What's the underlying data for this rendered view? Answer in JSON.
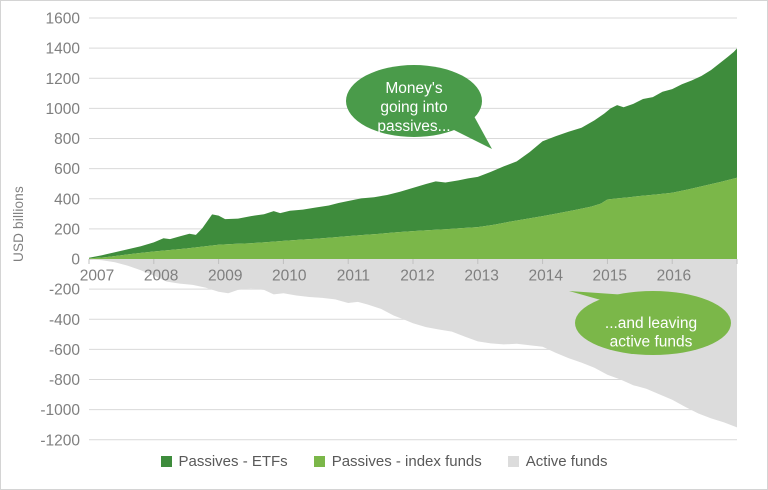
{
  "chart_data": {
    "type": "area",
    "stacked": true,
    "title": "",
    "xlabel": "",
    "ylabel": "USD billions",
    "x_unit": "year",
    "xlim": [
      2007,
      2017
    ],
    "ylim": [
      -1200,
      1600
    ],
    "ytick_step": 200,
    "xticks": [
      2007,
      2008,
      2009,
      2010,
      2011,
      2012,
      2013,
      2014,
      2015,
      2016
    ],
    "grid": "horizontal",
    "legend_position": "bottom",
    "colors": {
      "etf_green": "#3e8c3c",
      "index_green": "#7bb749",
      "active_gray": "#dcdcdc",
      "bubble_dark_green": "#4a9b4a",
      "bubble_light_green": "#7bb749",
      "gridline": "#d9d9d9",
      "axis": "#bfbfbf",
      "axis_text": "#7f7f7f",
      "legend_text": "#595959"
    },
    "series": [
      {
        "name": "Passives - ETFs",
        "color": "#3e8c3c",
        "upper": "total",
        "lower": "index"
      },
      {
        "name": "Passives - index funds",
        "color": "#7bb749",
        "upper": "index",
        "lower": "zero"
      },
      {
        "name": "Active funds",
        "color": "#dcdcdc",
        "upper": "zero",
        "lower": "active"
      }
    ],
    "curves": {
      "total": {
        "note": "cumulative passives total (ETFs stacked on index funds), USD bn",
        "x": [
          2007.0,
          2007.2,
          2007.4,
          2007.6,
          2007.8,
          2008.0,
          2008.15,
          2008.25,
          2008.4,
          2008.55,
          2008.65,
          2008.75,
          2008.9,
          2009.0,
          2009.1,
          2009.3,
          2009.5,
          2009.7,
          2009.85,
          2009.95,
          2010.1,
          2010.3,
          2010.5,
          2010.7,
          2010.85,
          2011.0,
          2011.2,
          2011.4,
          2011.6,
          2011.8,
          2012.0,
          2012.2,
          2012.35,
          2012.5,
          2012.7,
          2012.85,
          2013.0,
          2013.2,
          2013.4,
          2013.6,
          2013.8,
          2014.0,
          2014.2,
          2014.4,
          2014.6,
          2014.8,
          2014.95,
          2015.05,
          2015.15,
          2015.25,
          2015.4,
          2015.55,
          2015.7,
          2015.85,
          2016.0,
          2016.15,
          2016.3,
          2016.45,
          2016.6,
          2016.75,
          2016.85,
          2016.95,
          2017.0
        ],
        "y": [
          8,
          25,
          45,
          65,
          85,
          110,
          138,
          132,
          150,
          168,
          160,
          205,
          296,
          288,
          265,
          268,
          285,
          297,
          318,
          305,
          320,
          328,
          342,
          355,
          372,
          385,
          402,
          410,
          425,
          447,
          472,
          498,
          515,
          508,
          522,
          535,
          545,
          578,
          615,
          648,
          710,
          782,
          815,
          845,
          872,
          920,
          965,
          1000,
          1022,
          1008,
          1030,
          1062,
          1075,
          1110,
          1128,
          1160,
          1185,
          1215,
          1255,
          1305,
          1340,
          1375,
          1398
        ]
      },
      "index": {
        "note": "cumulative index-fund flows, USD bn",
        "x": [
          2007.0,
          2007.25,
          2007.5,
          2007.75,
          2008.0,
          2008.25,
          2008.5,
          2008.75,
          2009.0,
          2009.25,
          2009.5,
          2009.75,
          2010.0,
          2010.25,
          2010.5,
          2010.75,
          2011.0,
          2011.25,
          2011.5,
          2011.75,
          2012.0,
          2012.25,
          2012.5,
          2012.75,
          2013.0,
          2013.25,
          2013.5,
          2013.75,
          2014.0,
          2014.25,
          2014.5,
          2014.75,
          2014.9,
          2015.0,
          2015.15,
          2015.3,
          2015.5,
          2015.75,
          2016.0,
          2016.25,
          2016.5,
          2016.75,
          2017.0
        ],
        "y": [
          4,
          12,
          25,
          38,
          50,
          60,
          70,
          82,
          95,
          100,
          105,
          112,
          120,
          128,
          135,
          143,
          152,
          160,
          168,
          177,
          185,
          192,
          198,
          205,
          212,
          228,
          248,
          266,
          285,
          305,
          325,
          348,
          368,
          395,
          402,
          408,
          418,
          428,
          440,
          462,
          487,
          512,
          540
        ]
      },
      "active": {
        "note": "cumulative active-fund flows, USD bn",
        "x": [
          2007.0,
          2007.2,
          2007.4,
          2007.6,
          2007.8,
          2008.0,
          2008.2,
          2008.4,
          2008.6,
          2008.8,
          2009.0,
          2009.15,
          2009.3,
          2009.5,
          2009.7,
          2009.85,
          2010.0,
          2010.2,
          2010.4,
          2010.6,
          2010.8,
          2011.0,
          2011.15,
          2011.3,
          2011.5,
          2011.7,
          2011.85,
          2012.0,
          2012.2,
          2012.4,
          2012.6,
          2012.8,
          2013.0,
          2013.2,
          2013.4,
          2013.6,
          2013.8,
          2014.0,
          2014.2,
          2014.4,
          2014.6,
          2014.8,
          2015.0,
          2015.2,
          2015.4,
          2015.6,
          2015.8,
          2016.0,
          2016.2,
          2016.4,
          2016.6,
          2016.8,
          2017.0
        ],
        "y": [
          0,
          -8,
          -22,
          -45,
          -75,
          -110,
          -150,
          -163,
          -172,
          -190,
          -218,
          -228,
          -205,
          -195,
          -205,
          -235,
          -228,
          -242,
          -252,
          -258,
          -268,
          -292,
          -285,
          -302,
          -330,
          -375,
          -400,
          -427,
          -452,
          -468,
          -482,
          -515,
          -547,
          -560,
          -567,
          -563,
          -572,
          -582,
          -622,
          -658,
          -688,
          -722,
          -768,
          -800,
          -838,
          -862,
          -898,
          -935,
          -982,
          -1025,
          -1058,
          -1085,
          -1118
        ]
      }
    },
    "annotations": [
      {
        "name": "passives-callout",
        "lines": [
          "Money's",
          "going into",
          "passives..."
        ],
        "fill": "#4a9b4a",
        "text_color": "#ffffff"
      },
      {
        "name": "active-callout",
        "lines": [
          "...and leaving",
          "active funds"
        ],
        "fill": "#7bb749",
        "text_color": "#ffffff"
      }
    ],
    "legend": [
      {
        "label": "Passives - ETFs",
        "color": "#3e8c3c"
      },
      {
        "label": "Passives - index funds",
        "color": "#7bb749"
      },
      {
        "label": "Active funds",
        "color": "#dcdcdc"
      }
    ]
  }
}
